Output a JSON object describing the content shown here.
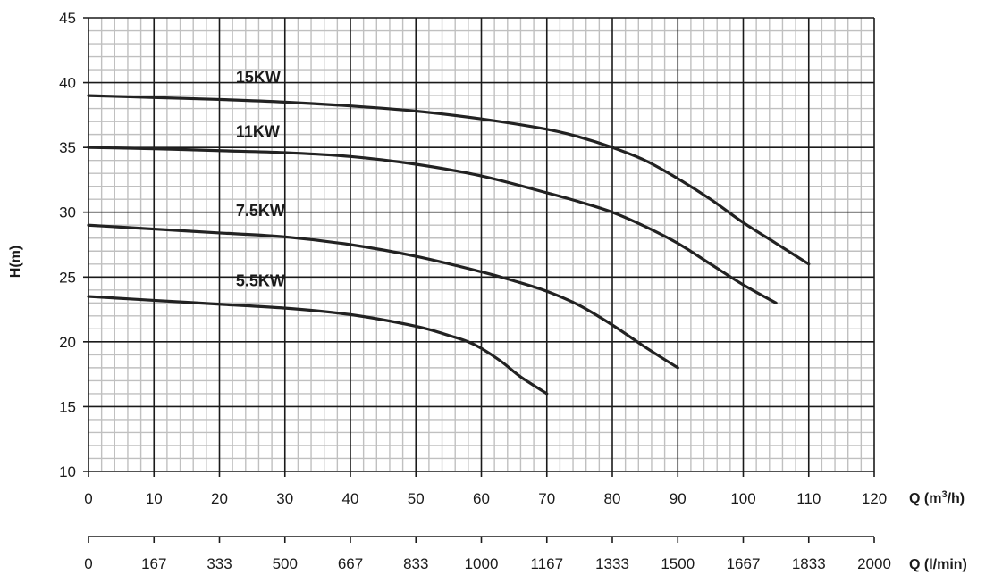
{
  "chart_data": {
    "type": "line",
    "ylabel": "H(m)",
    "xlabel": "Q (m³/h)",
    "x2label": "Q (l/min)",
    "xlim": [
      0,
      120
    ],
    "ylim": [
      10,
      45
    ],
    "xticks": [
      0,
      10,
      20,
      30,
      40,
      50,
      60,
      70,
      80,
      90,
      100,
      110,
      120
    ],
    "yticks": [
      10,
      15,
      20,
      25,
      30,
      35,
      40,
      45
    ],
    "x2ticks": [
      "0",
      "167",
      "333",
      "500",
      "667",
      "833",
      "1000",
      "1167",
      "1333",
      "1500",
      "1667",
      "1833",
      "2000"
    ],
    "grid": true,
    "series": [
      {
        "name": "15KW",
        "x": [
          0,
          10,
          20,
          30,
          40,
          50,
          60,
          70,
          75,
          80,
          85,
          90,
          95,
          100,
          105,
          110
        ],
        "y": [
          39,
          38.85,
          38.7,
          38.5,
          38.2,
          37.8,
          37.2,
          36.4,
          35.8,
          35,
          34,
          32.6,
          31,
          29.2,
          27.6,
          26
        ]
      },
      {
        "name": "11KW",
        "x": [
          0,
          10,
          20,
          30,
          40,
          50,
          60,
          70,
          75,
          80,
          85,
          90,
          95,
          100,
          105
        ],
        "y": [
          35,
          34.9,
          34.75,
          34.6,
          34.3,
          33.7,
          32.8,
          31.5,
          30.8,
          30,
          28.9,
          27.6,
          26,
          24.4,
          23
        ]
      },
      {
        "name": "7.5KW",
        "x": [
          0,
          10,
          20,
          30,
          40,
          50,
          60,
          65,
          70,
          75,
          80,
          85,
          90
        ],
        "y": [
          29,
          28.7,
          28.4,
          28.1,
          27.5,
          26.6,
          25.4,
          24.7,
          23.9,
          22.8,
          21.3,
          19.6,
          18
        ]
      },
      {
        "name": "5.5KW",
        "x": [
          0,
          10,
          20,
          30,
          40,
          50,
          55,
          58,
          60,
          63,
          66,
          70
        ],
        "y": [
          23.5,
          23.2,
          22.9,
          22.6,
          22.1,
          21.2,
          20.5,
          20,
          19.5,
          18.5,
          17.3,
          16
        ]
      }
    ],
    "series_label_positions_data": [
      {
        "name": "15KW",
        "x": 22.5,
        "y": 40
      },
      {
        "name": "11KW",
        "x": 22.5,
        "y": 35.8
      },
      {
        "name": "7.5KW",
        "x": 22.5,
        "y": 29.7
      },
      {
        "name": "5.5KW",
        "x": 22.5,
        "y": 24.3
      }
    ],
    "colors": {
      "line": "#222222",
      "major_grid": "#1a1a1a",
      "minor_grid": "#c0c0c0"
    }
  }
}
